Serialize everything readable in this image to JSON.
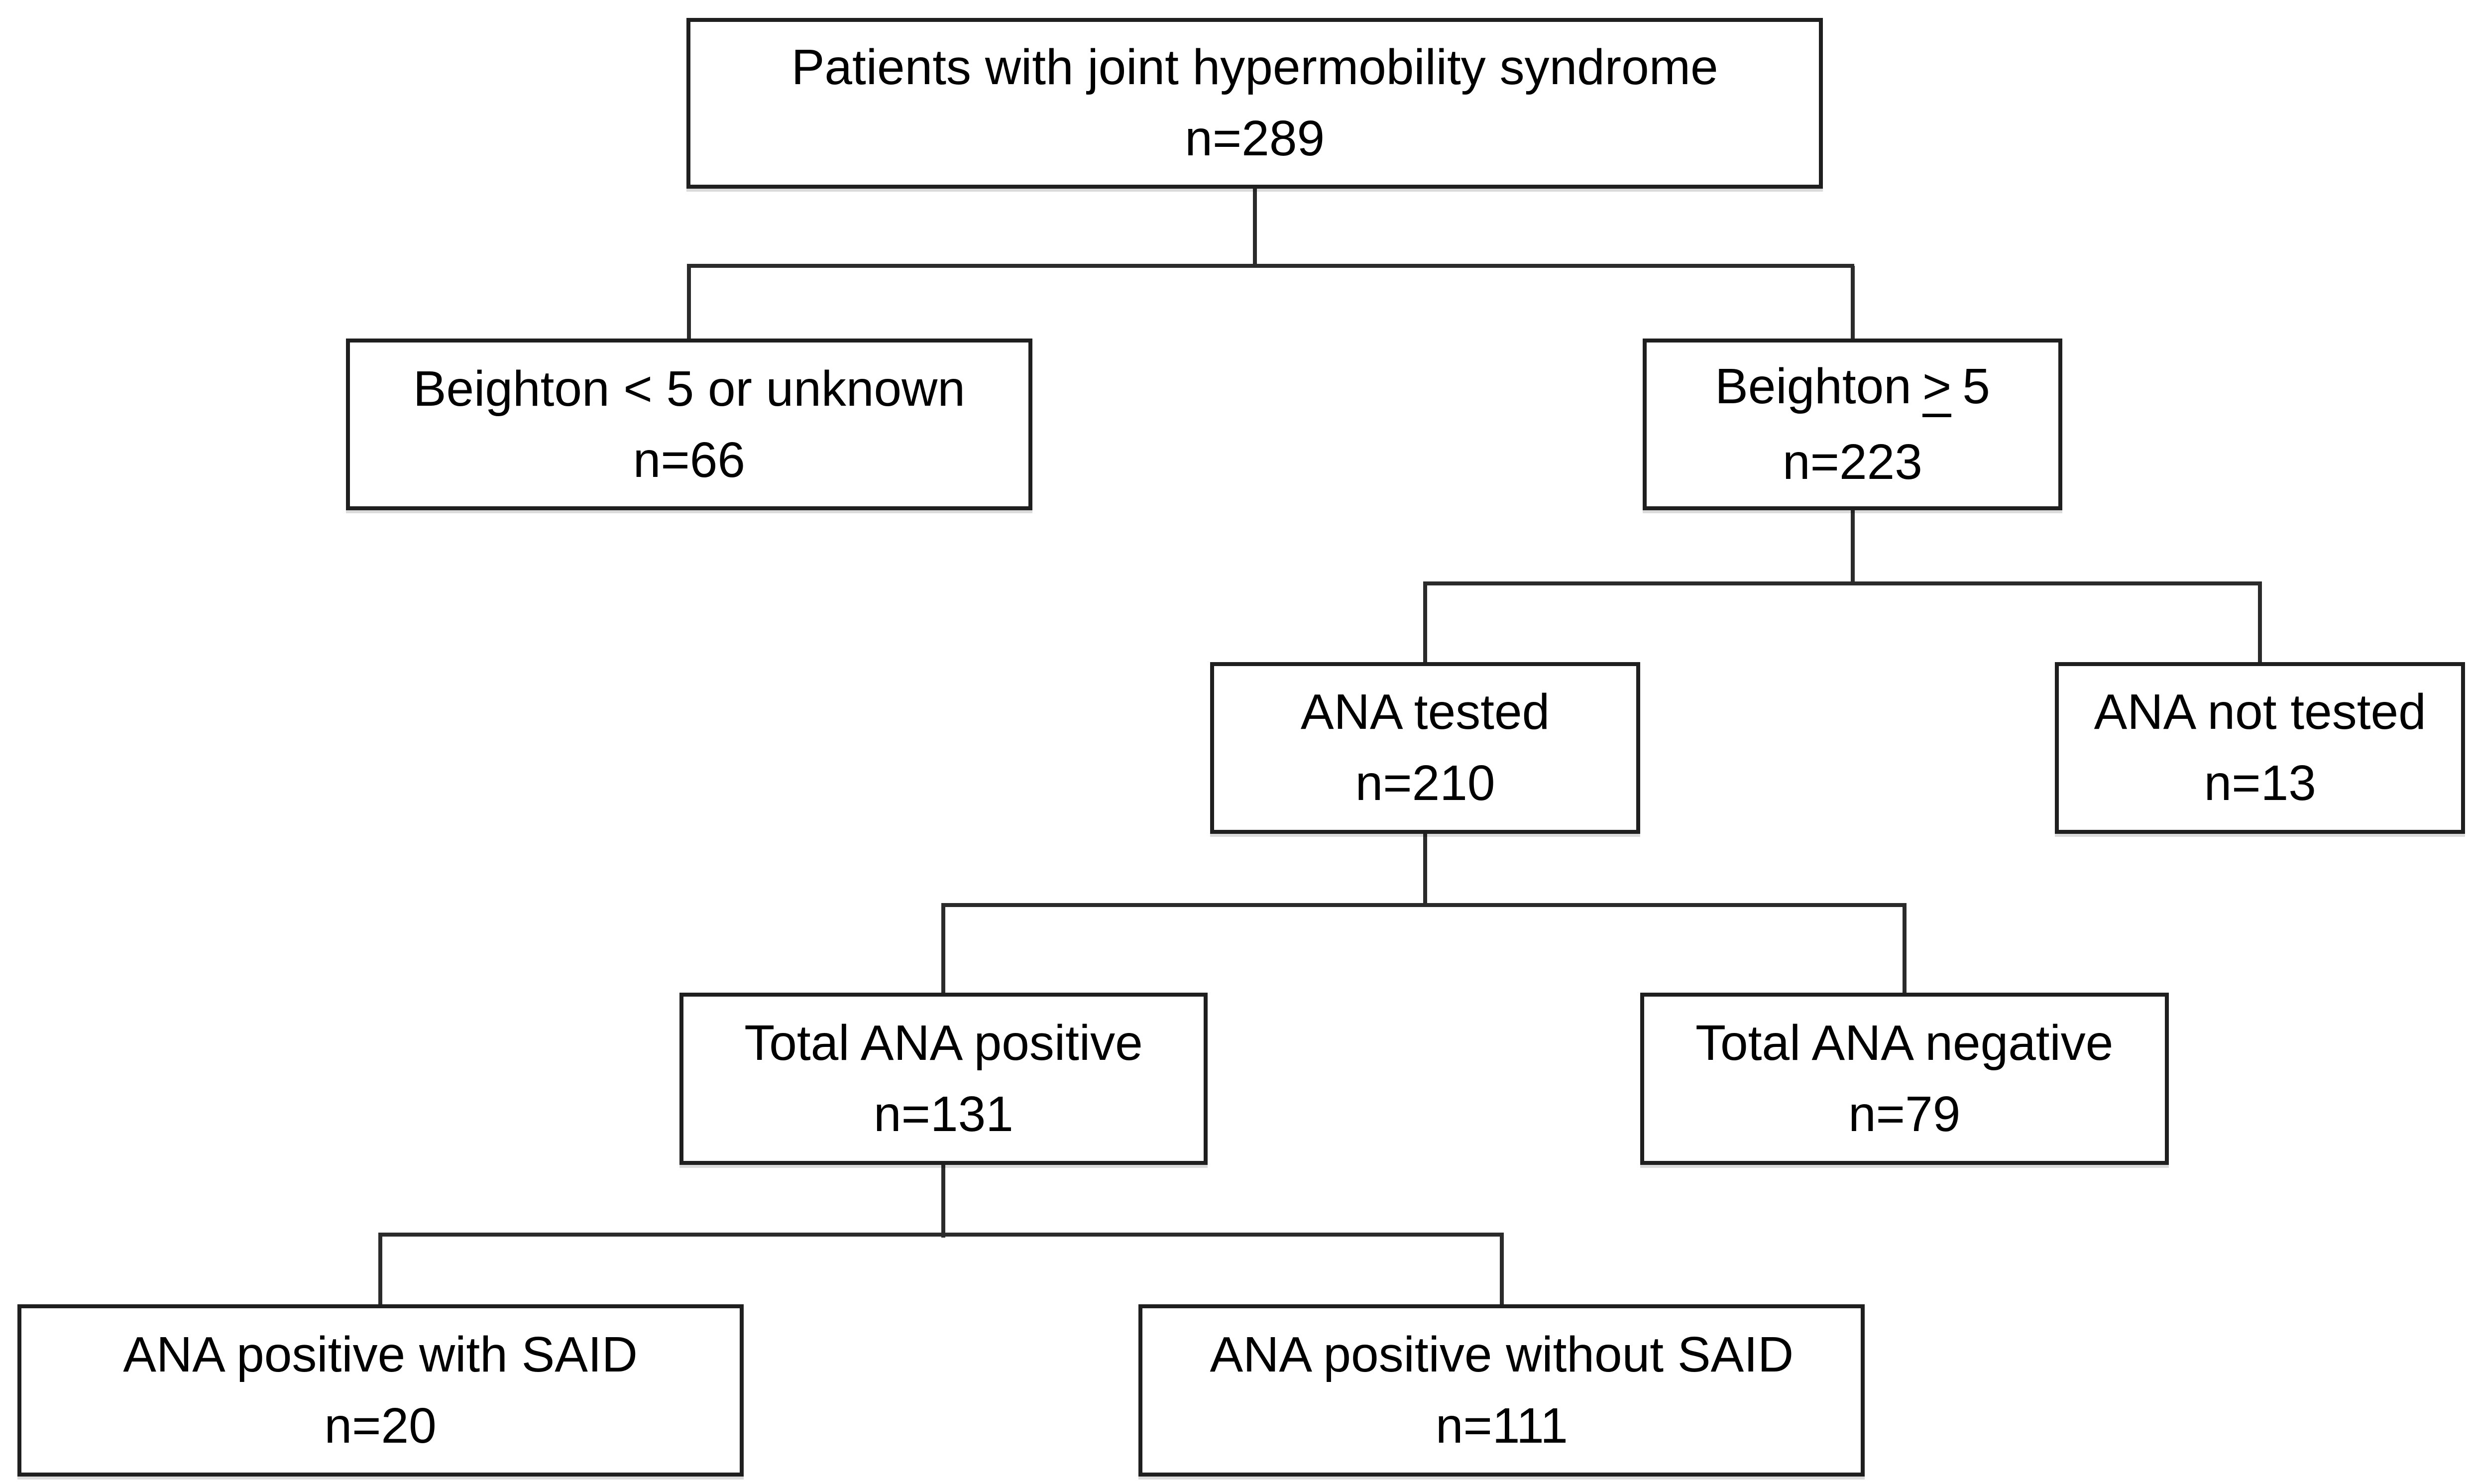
{
  "figure_type": "flowchart",
  "style": {
    "background": "#ffffff",
    "box_fill": "#ffffff",
    "box_border_color": "#1f1f1f",
    "connector_color": "#2b2b2b",
    "text_color": "#000000"
  },
  "nodes": {
    "root": {
      "label": "Patients with joint hypermobility syndrome",
      "count": "n=289"
    },
    "beighton_low": {
      "label": "Beighton < 5 or unknown",
      "count": "n=66"
    },
    "beighton_high": {
      "label_prefix": "Beighton",
      "label_operator": ">",
      "label_suffix": "5",
      "count": "n=223"
    },
    "ana_tested": {
      "label": "ANA tested",
      "count": "n=210"
    },
    "ana_not_tested": {
      "label": "ANA not tested",
      "count": "n=13"
    },
    "total_ana_positive": {
      "label": "Total ANA positive",
      "count": "n=131"
    },
    "total_ana_negative": {
      "label": "Total ANA negative",
      "count": "n=79"
    },
    "ana_positive_with_said": {
      "label": "ANA positive with SAID",
      "count": "n=20"
    },
    "ana_positive_without_said": {
      "label": "ANA positive without SAID",
      "count": "n=111"
    }
  },
  "edges": [
    {
      "from": "root",
      "to": "beighton_low"
    },
    {
      "from": "root",
      "to": "beighton_high"
    },
    {
      "from": "beighton_high",
      "to": "ana_tested"
    },
    {
      "from": "beighton_high",
      "to": "ana_not_tested"
    },
    {
      "from": "ana_tested",
      "to": "total_ana_positive"
    },
    {
      "from": "ana_tested",
      "to": "total_ana_negative"
    },
    {
      "from": "total_ana_positive",
      "to": "ana_positive_with_said"
    },
    {
      "from": "total_ana_positive",
      "to": "ana_positive_without_said"
    }
  ]
}
